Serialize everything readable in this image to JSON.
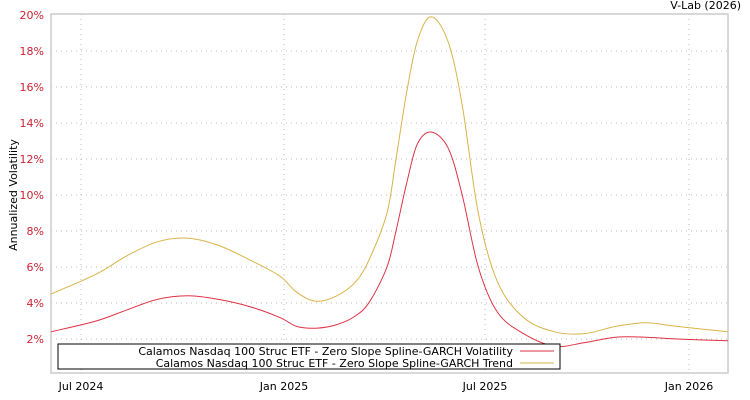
{
  "credit": "V-Lab (2026)",
  "colors": {
    "volatility": "#dd3344",
    "trend": "#d9b44a",
    "axis": "#cccccc",
    "ytick": "#cc2233"
  },
  "chart_data": {
    "type": "line",
    "title": "",
    "xlabel": "",
    "ylabel": "Annualized Volatility",
    "ylim": [
      0,
      20
    ],
    "yticks": [
      "2%",
      "4%",
      "6%",
      "8%",
      "10%",
      "12%",
      "14%",
      "16%",
      "18%",
      "20%"
    ],
    "xticks": [
      "Jul 2024",
      "Jan 2025",
      "Jul 2025",
      "Jan 2026"
    ],
    "grid": true,
    "legend_position": "bottom-inside",
    "x_range": [
      "2024-05",
      "2026-03"
    ],
    "x": [
      "2024-05-15",
      "2024-06-15",
      "2024-07-15",
      "2024-08-15",
      "2024-09-15",
      "2024-10-15",
      "2024-11-15",
      "2024-12-15",
      "2025-01-01",
      "2025-01-20",
      "2025-02-10",
      "2025-03-01",
      "2025-03-15",
      "2025-04-01",
      "2025-04-10",
      "2025-04-20",
      "2025-05-01",
      "2025-05-15",
      "2025-06-01",
      "2025-06-15",
      "2025-07-01",
      "2025-07-20",
      "2025-08-15",
      "2025-09-15",
      "2025-10-15",
      "2025-11-15",
      "2025-12-15",
      "2026-01-15",
      "2026-02-15"
    ],
    "series": [
      {
        "name": "Calamos Nasdaq 100 Struc ETF - Zero Slope Spline-GARCH Volatility",
        "color": "#dd3344",
        "values": [
          2.4,
          3.0,
          3.6,
          4.2,
          4.4,
          4.2,
          3.8,
          3.2,
          2.7,
          2.6,
          2.8,
          3.3,
          4.1,
          6.0,
          8.0,
          10.5,
          12.8,
          13.5,
          12.6,
          10.0,
          6.0,
          3.5,
          2.3,
          1.6,
          1.8,
          2.1,
          2.1,
          2.0,
          1.9
        ]
      },
      {
        "name": "Calamos Nasdaq 100 Struc ETF - Zero Slope Spline-GARCH Trend",
        "color": "#d9b44a",
        "values": [
          4.5,
          5.6,
          6.6,
          7.4,
          7.6,
          7.2,
          6.4,
          5.5,
          4.6,
          4.1,
          4.4,
          5.2,
          6.5,
          9.0,
          12.0,
          15.5,
          18.5,
          19.9,
          18.5,
          15.0,
          9.0,
          5.2,
          3.2,
          2.4,
          2.3,
          2.7,
          2.9,
          2.7,
          2.4
        ]
      }
    ]
  },
  "legend": {
    "items": [
      {
        "label": "Calamos Nasdaq 100 Struc ETF - Zero Slope Spline-GARCH Volatility",
        "color": "#dd3344"
      },
      {
        "label": "Calamos Nasdaq 100 Struc ETF - Zero Slope Spline-GARCH Trend",
        "color": "#d9b44a"
      }
    ]
  }
}
